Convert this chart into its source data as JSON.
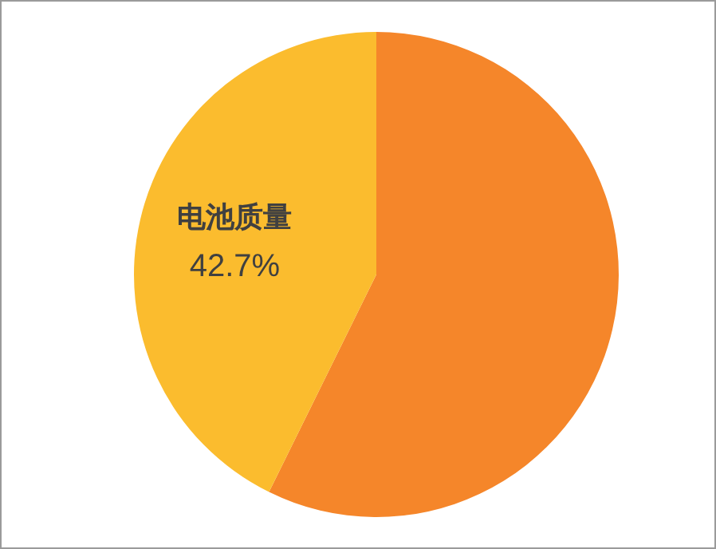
{
  "chart_data": {
    "type": "pie",
    "categories": [
      null,
      "电池质量"
    ],
    "values": [
      57.3,
      42.7
    ],
    "colors": [
      "#f5862a",
      "#fbbc2e"
    ],
    "value_labels": [
      null,
      "42.7%"
    ],
    "legend": false
  }
}
